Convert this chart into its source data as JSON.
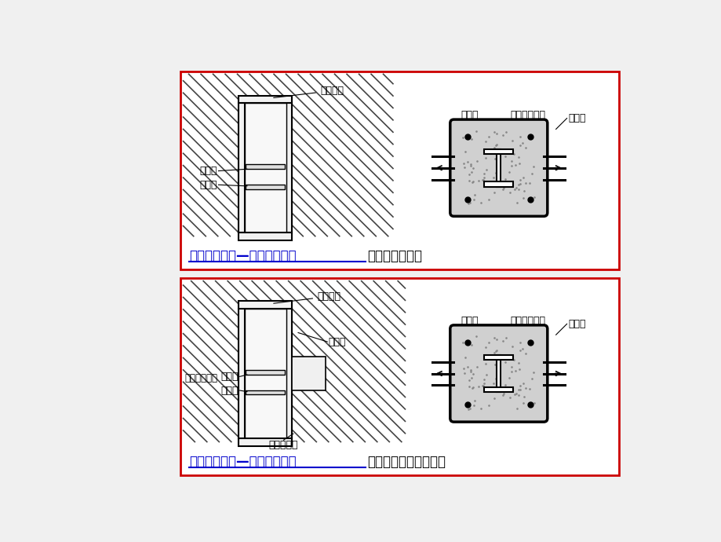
{
  "bg_color": "#f0f0f0",
  "panel_bg": "#ffffff",
  "panel1": {
    "border_color": "#cc0000",
    "title_blue": "型钢混凝土柱—钢筋混凝土梁",
    "title_black": "：纵筋贯通节点",
    "label_zhuneixinggang": "柱内型钢",
    "label_jiajinlei": "加劲肋",
    "label_paiqikong": "排气孔",
    "label_jiajinlei_cs": "加劲肋",
    "label_zhuzongjin": "柱纵筋与箍筋",
    "label_liangzongjin": "梁纵筋"
  },
  "panel2": {
    "border_color": "#cc0000",
    "title_blue": "型钢混凝土柱—钢筋混凝土梁",
    "title_black": "：纵筋焊接或搭接节点",
    "label_zhuneixinggang": "柱内型钢",
    "label_liangzongjin_3d": "梁纵筋",
    "label_duangangliang": "短钢梁或牛腿",
    "label_jiajinlei": "加劲肋",
    "label_paiqikong": "排气孔",
    "label_guojinkong": "箍筋贯穿孔",
    "label_jiajinlei_cs": "加劲肋",
    "label_zhuzongjin": "柱纵筋与箍筋",
    "label_liangzongjin": "梁纵筋"
  },
  "concrete_color": "#d0d0d0",
  "steel_color": "#f0f0f0",
  "line_color": "#000000",
  "blue_color": "#0000cc",
  "red_border": "#cc0000",
  "diag_color": "#444444"
}
